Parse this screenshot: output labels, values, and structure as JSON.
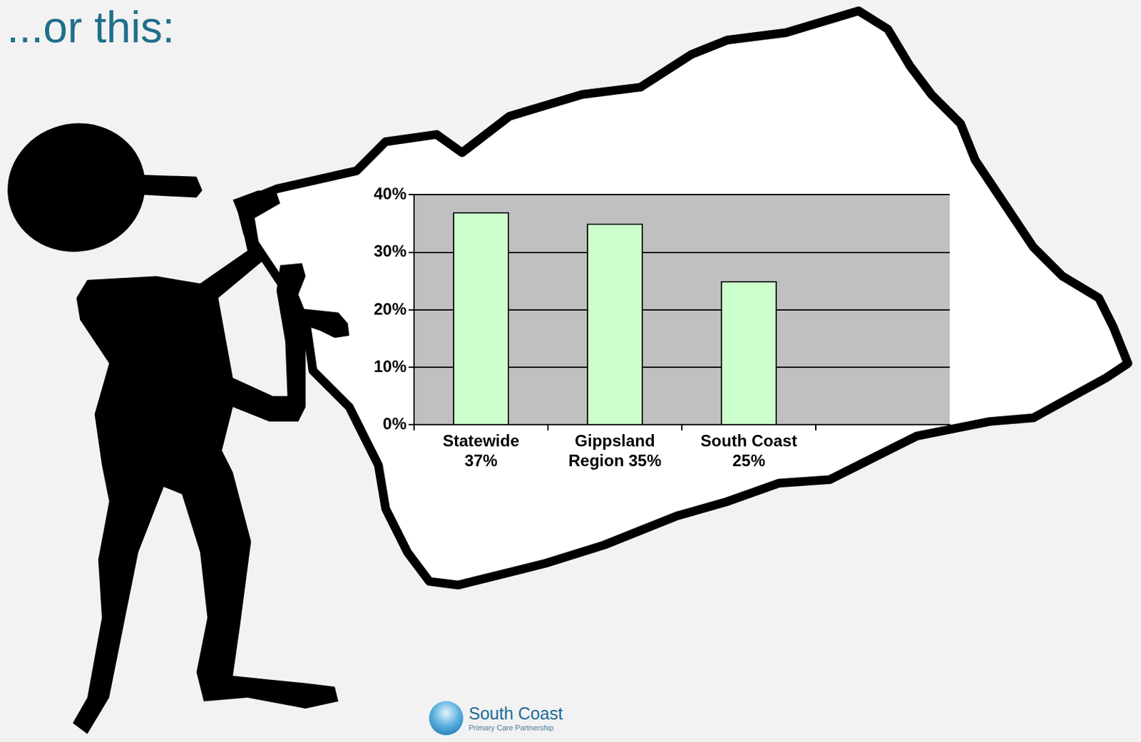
{
  "heading": "...or this:",
  "chart_data": {
    "type": "bar",
    "categories": [
      "Statewide 37%",
      "Gippsland Region 35%",
      "South Coast 25%",
      null
    ],
    "values": [
      37,
      35,
      25,
      null
    ],
    "color": "#ccffcc",
    "ylim": [
      0,
      40
    ],
    "yticks": [
      {
        "value": 0,
        "label": "0%"
      },
      {
        "value": 10,
        "label": "10%"
      },
      {
        "value": 20,
        "label": "20%"
      },
      {
        "value": 30,
        "label": "30%"
      },
      {
        "value": 40,
        "label": "40%"
      }
    ],
    "grid": true
  },
  "logo": {
    "name": "South Coast",
    "subtitle": "Primary Care Partnership"
  }
}
